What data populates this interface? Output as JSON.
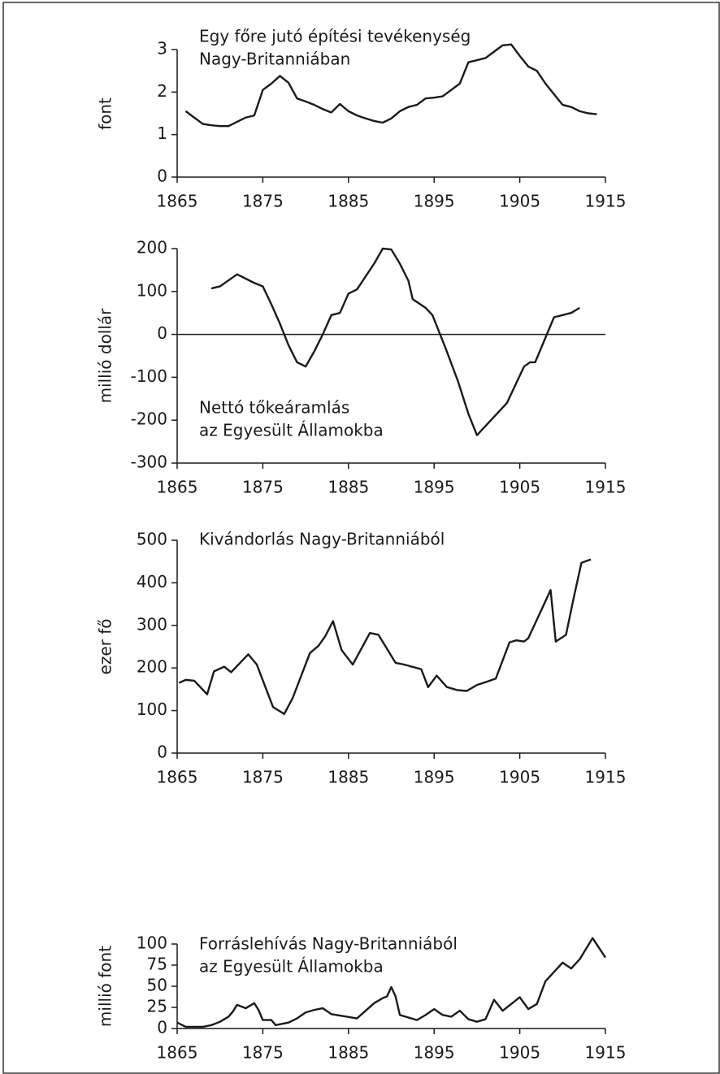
{
  "chart_data": [
    {
      "type": "line",
      "title": [
        "Egy főre jutó építési tevékenység",
        "Nagy-Britanniában"
      ],
      "y_label": "font",
      "x": [
        1866,
        1867,
        1868,
        1869,
        1870,
        1871,
        1872,
        1873,
        1874,
        1875,
        1876,
        1877,
        1878,
        1879,
        1880,
        1881,
        1882,
        1883,
        1884,
        1885,
        1886,
        1887,
        1888,
        1889,
        1890,
        1891,
        1892,
        1893,
        1894,
        1895,
        1896,
        1897,
        1898,
        1899,
        1900,
        1901,
        1902,
        1903,
        1904,
        1905,
        1906,
        1907,
        1908,
        1909,
        1910,
        1911,
        1912,
        1913,
        1914
      ],
      "values": [
        1.55,
        1.4,
        1.25,
        1.22,
        1.2,
        1.2,
        1.3,
        1.4,
        1.45,
        2.05,
        2.2,
        2.38,
        2.22,
        1.85,
        1.78,
        1.7,
        1.6,
        1.52,
        1.72,
        1.55,
        1.45,
        1.38,
        1.32,
        1.28,
        1.38,
        1.55,
        1.65,
        1.7,
        1.85,
        1.87,
        1.9,
        2.05,
        2.2,
        2.7,
        2.75,
        2.8,
        2.95,
        3.1,
        3.12,
        2.85,
        2.6,
        2.5,
        2.2,
        1.95,
        1.7,
        1.65,
        1.55,
        1.5,
        1.48
      ],
      "color": "#1a1a1a",
      "xlim": [
        1865,
        1915
      ],
      "xticks": [
        1865,
        1875,
        1885,
        1895,
        1905,
        1915
      ],
      "ylim": [
        0,
        3
      ],
      "yticks": [
        0,
        1,
        2,
        3
      ]
    },
    {
      "type": "line",
      "title": [
        "Nettó tőkeáramlás",
        "az Egyesült Államokba"
      ],
      "y_label": "millió dollár",
      "x": [
        1869,
        1870,
        1872,
        1874,
        1875,
        1876,
        1877,
        1878,
        1879,
        1880,
        1881,
        1882,
        1883,
        1884,
        1885,
        1886,
        1887,
        1888,
        1889,
        1890,
        1891,
        1892,
        1892.5,
        1894,
        1894.8,
        1896.3,
        1897.8,
        1899,
        1900,
        1903.5,
        1905.5,
        1906.2,
        1906.8,
        1909,
        1911,
        1912
      ],
      "values": [
        107,
        112,
        140,
        120,
        112,
        70,
        25,
        -25,
        -65,
        -75,
        -40,
        0,
        45,
        50,
        95,
        105,
        135,
        165,
        200,
        198,
        165,
        125,
        82,
        62,
        45,
        -30,
        -110,
        -185,
        -235,
        -160,
        -75,
        -65,
        -65,
        40,
        50,
        62
      ],
      "color": "#1a1a1a",
      "xlim": [
        1865,
        1915
      ],
      "xticks": [
        1865,
        1875,
        1885,
        1895,
        1905,
        1915
      ],
      "ylim": [
        -300,
        200
      ],
      "yticks": [
        -300,
        -200,
        -100,
        0,
        100,
        200
      ],
      "hlines": [
        0
      ]
    },
    {
      "type": "line",
      "title": [
        "Kivándorlás Nagy-Britanniából"
      ],
      "y_label": "ezer fő",
      "x": [
        1865.2,
        1866,
        1867,
        1868.5,
        1869.3,
        1870.5,
        1871.3,
        1873.3,
        1874.3,
        1876.2,
        1877.5,
        1878.5,
        1880.5,
        1881.5,
        1882.3,
        1883.2,
        1884.2,
        1885.5,
        1887.5,
        1888.5,
        1890.5,
        1891.5,
        1893.5,
        1894.3,
        1895.3,
        1896.5,
        1897.7,
        1898.8,
        1900,
        1901.2,
        1902.2,
        1903.8,
        1904.6,
        1905.5,
        1906,
        1908.6,
        1909.2,
        1910.4,
        1911.3,
        1912.2,
        1913.3
      ],
      "values": [
        165,
        172,
        170,
        138,
        192,
        203,
        190,
        232,
        208,
        108,
        92,
        130,
        235,
        252,
        275,
        310,
        242,
        208,
        282,
        278,
        212,
        208,
        197,
        155,
        182,
        155,
        148,
        146,
        160,
        168,
        175,
        260,
        265,
        262,
        270,
        383,
        262,
        278,
        365,
        447,
        455
      ],
      "color": "#1a1a1a",
      "xlim": [
        1865,
        1915
      ],
      "xticks": [
        1865,
        1875,
        1885,
        1895,
        1905,
        1915
      ],
      "ylim": [
        0,
        500
      ],
      "yticks": [
        0,
        100,
        200,
        300,
        400,
        500
      ]
    },
    {
      "type": "line",
      "title": [
        "Forráslehívás Nagy-Britanniából",
        "az Egyesült Államokba"
      ],
      "y_label": "millió font",
      "x": [
        1865,
        1866,
        1867,
        1868,
        1869,
        1870,
        1871,
        1871.5,
        1872,
        1873,
        1874,
        1874.5,
        1875,
        1876,
        1876.5,
        1877,
        1878,
        1879,
        1880,
        1881,
        1882,
        1883,
        1886,
        1888,
        1889,
        1889.5,
        1890,
        1890.5,
        1891,
        1893,
        1894,
        1895,
        1896,
        1897,
        1898,
        1899,
        1900,
        1901,
        1902,
        1903,
        1905,
        1906,
        1907,
        1908,
        1910,
        1911,
        1912,
        1913.5,
        1915
      ],
      "values": [
        7,
        2,
        2,
        2,
        4,
        8,
        14,
        20,
        28,
        24,
        30,
        22,
        10,
        10,
        4,
        5,
        7,
        12,
        19,
        22,
        24,
        17,
        12,
        30,
        36,
        38,
        49,
        38,
        16,
        10,
        16,
        23,
        16,
        14,
        21,
        11,
        8,
        11,
        34,
        21,
        37,
        23,
        29,
        56,
        78,
        71,
        82,
        107,
        84
      ],
      "color": "#1a1a1a",
      "xlim": [
        1865,
        1915
      ],
      "xticks": [
        1865,
        1875,
        1885,
        1895,
        1905,
        1915
      ],
      "ylim": [
        0,
        100
      ],
      "yticks": [
        0,
        25,
        50,
        75,
        100
      ]
    }
  ]
}
